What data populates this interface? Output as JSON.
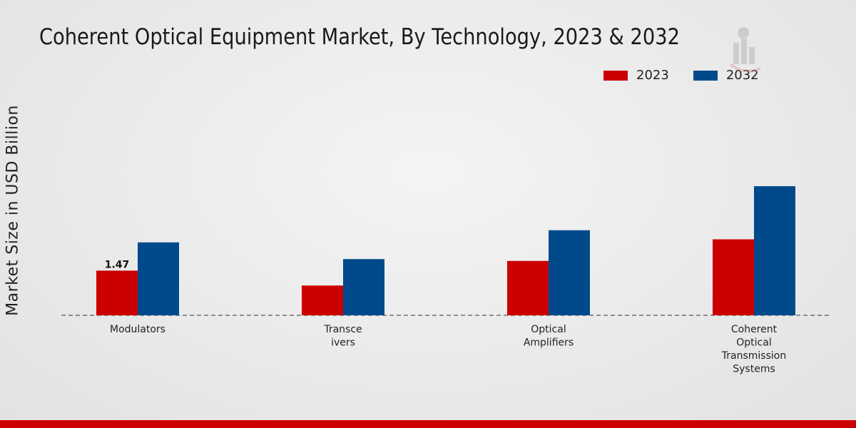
{
  "chart_data": {
    "type": "bar",
    "title": "Coherent Optical Equipment Market, By Technology, 2023 & 2032",
    "xlabel": "",
    "ylabel": "Market Size in USD Billion",
    "categories": [
      [
        "Modulators"
      ],
      [
        "Transce",
        "ivers"
      ],
      [
        "Optical",
        "Amplifiers"
      ],
      [
        "Coherent",
        "Optical",
        "Transmission",
        "Systems"
      ]
    ],
    "series": [
      {
        "name": "2023",
        "color": "#cc0000",
        "values": [
          1.47,
          0.98,
          1.79,
          2.5
        ]
      },
      {
        "name": "2032",
        "color": "#004a8c",
        "values": [
          2.4,
          1.85,
          2.8,
          4.25
        ]
      }
    ],
    "data_labels": [
      {
        "series": 0,
        "index": 0,
        "text": "1.47"
      }
    ],
    "ylim": [
      0,
      8.5
    ],
    "grid": false,
    "legend": "top-right"
  }
}
